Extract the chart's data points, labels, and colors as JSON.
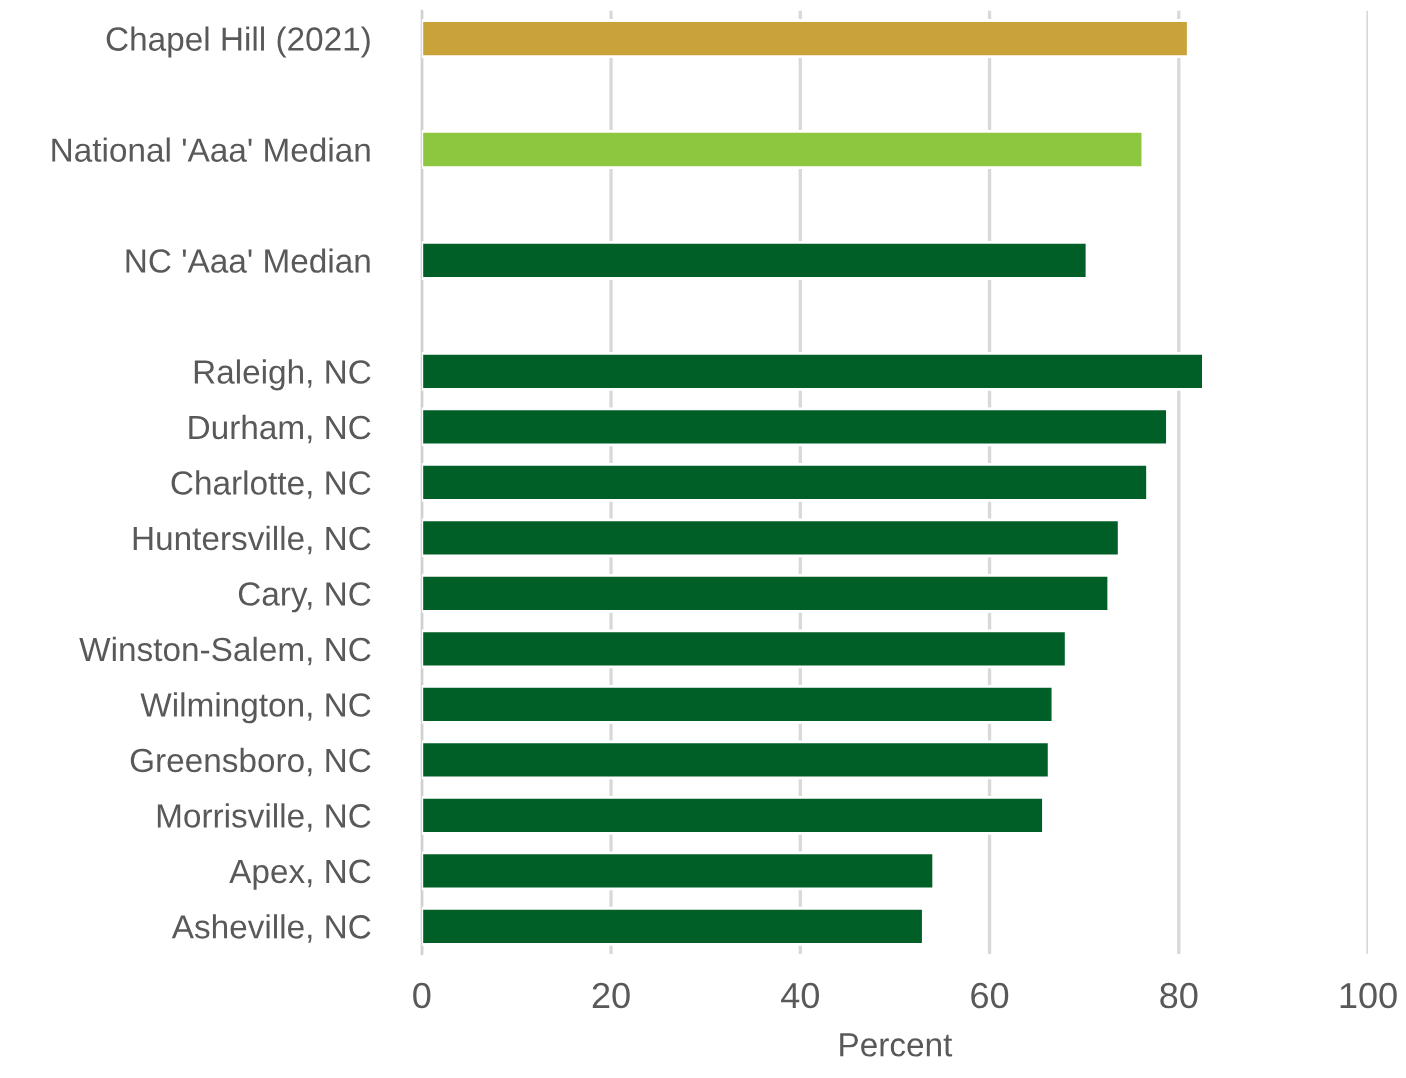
{
  "chart_data": {
    "type": "bar",
    "orientation": "horizontal",
    "xlabel": "Percent",
    "categories": [
      "Chapel Hill (2021)",
      null,
      "National 'Aaa' Median",
      null,
      "NC 'Aaa' Median",
      null,
      "Raleigh, NC",
      "Durham, NC",
      "Charlotte, NC",
      "Huntersville, NC",
      "Cary, NC",
      "Winston-Salem, NC",
      "Wilmington, NC",
      "Greensboro, NC",
      "Morrisville, NC",
      "Apex, NC",
      "Asheville, NC"
    ],
    "values": [
      81,
      null,
      76.2,
      null,
      70.3,
      null,
      82.6,
      78.8,
      76.7,
      73.7,
      72.6,
      68.1,
      66.7,
      66.3,
      65.7,
      54.1,
      53.0
    ],
    "colors": [
      "#c9a23a",
      null,
      "#8dc63f",
      null,
      "#005f27",
      null,
      "#005f27",
      "#005f27",
      "#005f27",
      "#005f27",
      "#005f27",
      "#005f27",
      "#005f27",
      "#005f27",
      "#005f27",
      "#005f27",
      "#005f27"
    ],
    "xlim": [
      0,
      100
    ],
    "xticks": [
      0,
      20,
      40,
      60,
      80,
      100
    ],
    "grid": "x",
    "legend": false
  }
}
